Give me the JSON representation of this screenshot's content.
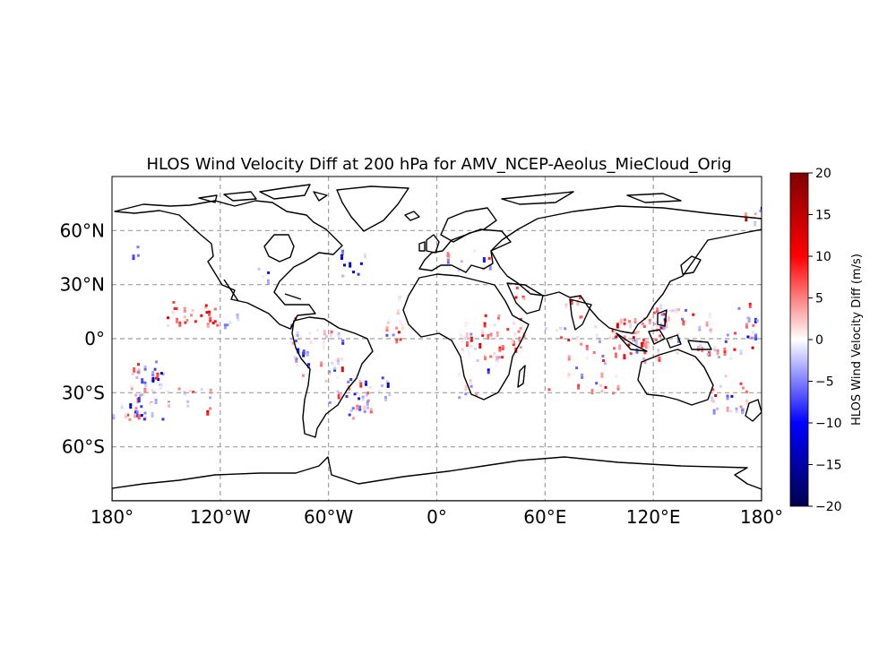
{
  "title": "HLOS Wind Velocity Diff at 200 hPa for AMV_NCEP-Aeolus_MieCloud_Orig",
  "colorbar": {
    "label": "HLOS Wind Velocity Diff (m/s)",
    "range": [
      -20,
      20
    ],
    "ticks": [
      "20",
      "15",
      "10",
      "5",
      "0",
      "−5",
      "−10",
      "−15",
      "−20"
    ],
    "tick_values": [
      20,
      15,
      10,
      5,
      0,
      -5,
      -10,
      -15,
      -20
    ],
    "colormap": "seismic"
  },
  "map": {
    "projection": "PlateCarree",
    "lon_range": [
      -180,
      180
    ],
    "lat_range": [
      -90,
      90
    ],
    "gridlines": true,
    "lon_ticks": [
      "180°",
      "120°W",
      "60°W",
      "0°",
      "60°E",
      "120°E",
      "180°"
    ],
    "lon_tick_values": [
      -180,
      -120,
      -60,
      0,
      60,
      120,
      180
    ],
    "lat_ticks": [
      "60°N",
      "30°N",
      "0°",
      "30°S",
      "60°S"
    ],
    "lat_tick_values": [
      60,
      30,
      0,
      -30,
      -60
    ]
  },
  "chart_data": {
    "type": "heatmap",
    "x_range": [
      -180,
      180
    ],
    "y_range": [
      -90,
      90
    ],
    "value_range": [
      -20,
      20
    ],
    "xlabel": "",
    "ylabel": "",
    "regions": [
      {
        "lon": [
          -172,
          -152
        ],
        "lat": [
          -45,
          -12
        ],
        "count": 60,
        "mean": -2,
        "spread": 8
      },
      {
        "lon": [
          -170,
          -166
        ],
        "lat": [
          42,
          52
        ],
        "count": 3,
        "mean": -6,
        "spread": 3
      },
      {
        "lon": [
          -150,
          -120
        ],
        "lat": [
          -40,
          -25
        ],
        "count": 16,
        "mean": 2,
        "spread": 6
      },
      {
        "lon": [
          -150,
          -120
        ],
        "lat": [
          8,
          22
        ],
        "count": 28,
        "mean": 5,
        "spread": 5
      },
      {
        "lon": [
          -118,
          -108
        ],
        "lat": [
          8,
          32
        ],
        "count": 6,
        "mean": 1,
        "spread": 6
      },
      {
        "lon": [
          -100,
          -85
        ],
        "lat": [
          28,
          45
        ],
        "count": 4,
        "mean": -4,
        "spread": 6
      },
      {
        "lon": [
          -82,
          -70
        ],
        "lat": [
          -20,
          12
        ],
        "count": 22,
        "mean": -2,
        "spread": 6
      },
      {
        "lon": [
          -68,
          -52
        ],
        "lat": [
          -25,
          8
        ],
        "count": 22,
        "mean": 1,
        "spread": 6
      },
      {
        "lon": [
          -60,
          -40
        ],
        "lat": [
          -45,
          -25
        ],
        "count": 14,
        "mean": -1,
        "spread": 7
      },
      {
        "lon": [
          -55,
          -40
        ],
        "lat": [
          35,
          52
        ],
        "count": 10,
        "mean": -9,
        "spread": 6
      },
      {
        "lon": [
          -50,
          -22
        ],
        "lat": [
          -40,
          -18
        ],
        "count": 24,
        "mean": -1,
        "spread": 7
      },
      {
        "lon": [
          -30,
          -18
        ],
        "lat": [
          0,
          25
        ],
        "count": 16,
        "mean": 2,
        "spread": 6
      },
      {
        "lon": [
          2,
          30
        ],
        "lat": [
          40,
          50
        ],
        "count": 10,
        "mean": 0,
        "spread": 9
      },
      {
        "lon": [
          12,
          50
        ],
        "lat": [
          -10,
          15
        ],
        "count": 45,
        "mean": 3,
        "spread": 6
      },
      {
        "lon": [
          10,
          40
        ],
        "lat": [
          -32,
          -8
        ],
        "count": 16,
        "mean": -2,
        "spread": 6
      },
      {
        "lon": [
          42,
          58
        ],
        "lat": [
          22,
          30
        ],
        "count": 5,
        "mean": 6,
        "spread": 4
      },
      {
        "lon": [
          58,
          100
        ],
        "lat": [
          -30,
          8
        ],
        "count": 38,
        "mean": 1,
        "spread": 6
      },
      {
        "lon": [
          70,
          80
        ],
        "lat": [
          10,
          25
        ],
        "count": 6,
        "mean": 6,
        "spread": 4
      },
      {
        "lon": [
          96,
          125
        ],
        "lat": [
          -12,
          12
        ],
        "count": 55,
        "mean": 4,
        "spread": 7
      },
      {
        "lon": [
          118,
          128
        ],
        "lat": [
          6,
          20
        ],
        "count": 12,
        "mean": 3,
        "spread": 7
      },
      {
        "lon": [
          125,
          168
        ],
        "lat": [
          -12,
          18
        ],
        "count": 40,
        "mean": 1,
        "spread": 7
      },
      {
        "lon": [
          150,
          172
        ],
        "lat": [
          -45,
          -20
        ],
        "count": 20,
        "mean": 1,
        "spread": 8
      },
      {
        "lon": [
          165,
          180
        ],
        "lat": [
          -5,
          20
        ],
        "count": 16,
        "mean": -1,
        "spread": 8
      },
      {
        "lon": [
          170,
          180
        ],
        "lat": [
          65,
          75
        ],
        "count": 6,
        "mean": -3,
        "spread": 10
      },
      {
        "lon": [
          -180,
          -172
        ],
        "lat": [
          -45,
          -35
        ],
        "count": 3,
        "mean": -3,
        "spread": 5
      }
    ],
    "grid_resolution_deg": [
      1.5,
      1.5
    ]
  }
}
